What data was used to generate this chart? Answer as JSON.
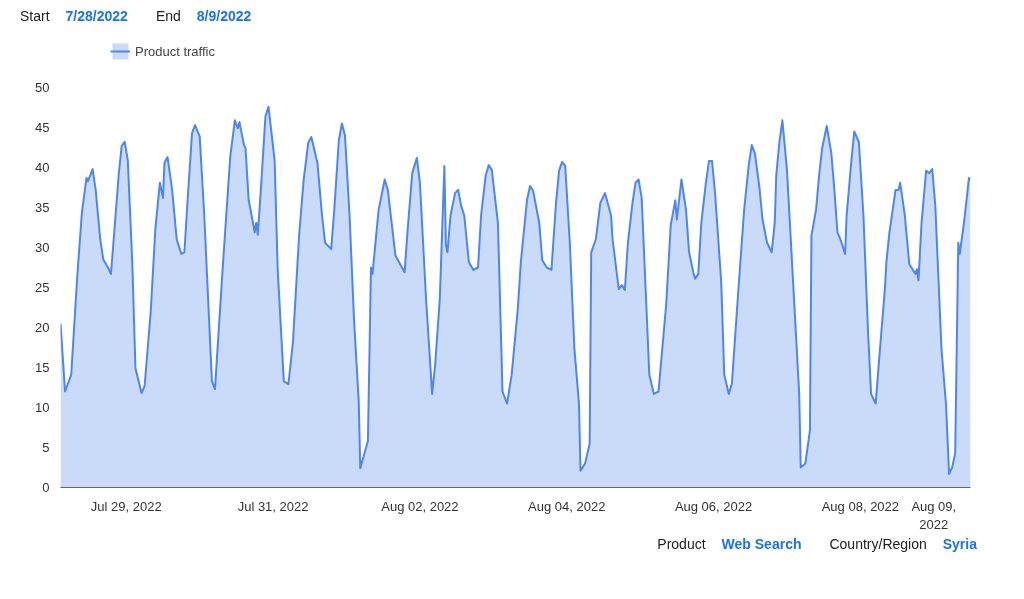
{
  "chart_data": {
    "type": "area",
    "annotations": [
      "Start",
      "7/28/2022",
      "End",
      "8/9/2022",
      "Product",
      "Web Search",
      "Country/Region",
      "Syria"
    ],
    "x": [
      "2022-07-28T02:30",
      "2022-07-28T04:00",
      "2022-07-28T06:00",
      "2022-07-28T08:00",
      "2022-07-28T09:30",
      "2022-07-28T11:00",
      "2022-07-28T11:30",
      "2022-07-28T13:00",
      "2022-07-28T14:00",
      "2022-07-28T15:30",
      "2022-07-28T16:30",
      "2022-07-28T18:00",
      "2022-07-28T19:00",
      "2022-07-28T20:30",
      "2022-07-28T21:30",
      "2022-07-28T22:30",
      "2022-07-28T23:30",
      "2022-07-29T00:30",
      "2022-07-29T02:00",
      "2022-07-29T03:00",
      "2022-07-29T05:00",
      "2022-07-29T06:00",
      "2022-07-29T08:00",
      "2022-07-29T09:30",
      "2022-07-29T11:00",
      "2022-07-29T12:00",
      "2022-07-29T12:30",
      "2022-07-29T13:30",
      "2022-07-29T15:00",
      "2022-07-29T16:30",
      "2022-07-29T18:00",
      "2022-07-29T19:00",
      "2022-07-29T20:00",
      "2022-07-29T21:30",
      "2022-07-29T22:30",
      "2022-07-30T00:00",
      "2022-07-30T01:30",
      "2022-07-30T03:00",
      "2022-07-30T04:00",
      "2022-07-30T05:00",
      "2022-07-30T07:30",
      "2022-07-30T10:00",
      "2022-07-30T11:30",
      "2022-07-30T12:30",
      "2022-07-30T13:00",
      "2022-07-30T14:30",
      "2022-07-30T15:00",
      "2022-07-30T16:00",
      "2022-07-30T18:00",
      "2022-07-30T18:30",
      "2022-07-30T19:00",
      "2022-07-30T20:00",
      "2022-07-30T21:30",
      "2022-07-30T22:30",
      "2022-07-31T00:30",
      "2022-07-31T01:30",
      "2022-07-31T03:30",
      "2022-07-31T05:00",
      "2022-07-31T06:30",
      "2022-07-31T08:30",
      "2022-07-31T10:00",
      "2022-07-31T11:30",
      "2022-07-31T12:30",
      "2022-07-31T14:30",
      "2022-07-31T16:00",
      "2022-07-31T17:00",
      "2022-07-31T19:00",
      "2022-07-31T20:00",
      "2022-07-31T21:30",
      "2022-07-31T22:30",
      "2022-07-31T23:30",
      "2022-08-01T01:00",
      "2022-08-01T02:30",
      "2022-08-01T04:00",
      "2022-08-01T04:30",
      "2022-08-01T07:00",
      "2022-08-01T08:00",
      "2022-08-01T08:30",
      "2022-08-01T10:30",
      "2022-08-01T12:30",
      "2022-08-01T13:30",
      "2022-08-01T15:00",
      "2022-08-01T16:00",
      "2022-08-01T19:00",
      "2022-08-01T20:00",
      "2022-08-01T21:30",
      "2022-08-01T23:00",
      "2022-08-02T00:00",
      "2022-08-02T02:00",
      "2022-08-02T04:00",
      "2022-08-02T05:00",
      "2022-08-02T06:30",
      "2022-08-02T08:00",
      "2022-08-02T08:30",
      "2022-08-02T09:00",
      "2022-08-02T10:00",
      "2022-08-02T11:30",
      "2022-08-02T12:30",
      "2022-08-02T13:30",
      "2022-08-02T14:30",
      "2022-08-02T16:00",
      "2022-08-02T17:30",
      "2022-08-02T19:00",
      "2022-08-02T20:00",
      "2022-08-02T21:30",
      "2022-08-02T22:30",
      "2022-08-02T23:30",
      "2022-08-03T01:30",
      "2022-08-03T03:00",
      "2022-08-03T04:30",
      "2022-08-03T06:00",
      "2022-08-03T08:00",
      "2022-08-03T09:00",
      "2022-08-03T11:00",
      "2022-08-03T12:00",
      "2022-08-03T13:00",
      "2022-08-03T15:00",
      "2022-08-03T16:00",
      "2022-08-03T17:30",
      "2022-08-03T19:00",
      "2022-08-03T20:30",
      "2022-08-03T21:30",
      "2022-08-03T22:30",
      "2022-08-03T23:30",
      "2022-08-04T01:00",
      "2022-08-04T02:30",
      "2022-08-04T04:00",
      "2022-08-04T04:30",
      "2022-08-04T06:00",
      "2022-08-04T07:30",
      "2022-08-04T08:00",
      "2022-08-04T09:30",
      "2022-08-04T11:00",
      "2022-08-04T11:30",
      "2022-08-04T12:30",
      "2022-08-04T14:30",
      "2022-08-04T15:00",
      "2022-08-04T17:00",
      "2022-08-04T18:00",
      "2022-08-04T19:00",
      "2022-08-04T20:00",
      "2022-08-04T21:30",
      "2022-08-04T22:30",
      "2022-08-04T23:30",
      "2022-08-05T00:30",
      "2022-08-05T03:00",
      "2022-08-05T04:30",
      "2022-08-05T06:00",
      "2022-08-05T08:30",
      "2022-08-05T10:00",
      "2022-08-05T11:30",
      "2022-08-05T12:00",
      "2022-08-05T13:30",
      "2022-08-05T15:00",
      "2022-08-05T16:00",
      "2022-08-05T17:30",
      "2022-08-05T18:00",
      "2022-08-05T19:00",
      "2022-08-05T20:00",
      "2022-08-05T21:30",
      "2022-08-05T22:30",
      "2022-08-05T23:30",
      "2022-08-06T00:30",
      "2022-08-06T02:30",
      "2022-08-06T03:30",
      "2022-08-06T05:00",
      "2022-08-06T06:00",
      "2022-08-06T08:00",
      "2022-08-06T10:00",
      "2022-08-06T11:30",
      "2022-08-06T12:30",
      "2022-08-06T13:30",
      "2022-08-06T15:00",
      "2022-08-06T16:00",
      "2022-08-06T17:30",
      "2022-08-06T19:00",
      "2022-08-06T20:00",
      "2022-08-06T20:30",
      "2022-08-06T21:30",
      "2022-08-06T22:30",
      "2022-08-07T00:00",
      "2022-08-07T02:00",
      "2022-08-07T04:00",
      "2022-08-07T04:30",
      "2022-08-07T06:00",
      "2022-08-07T07:30",
      "2022-08-07T08:00",
      "2022-08-07T09:30",
      "2022-08-07T10:30",
      "2022-08-07T11:30",
      "2022-08-07T13:00",
      "2022-08-07T14:30",
      "2022-08-07T15:30",
      "2022-08-07T16:30",
      "2022-08-07T17:30",
      "2022-08-07T19:00",
      "2022-08-07T19:30",
      "2022-08-07T21:00",
      "2022-08-07T22:00",
      "2022-08-07T23:30",
      "2022-08-08T01:00",
      "2022-08-08T02:30",
      "2022-08-08T03:30",
      "2022-08-08T05:00",
      "2022-08-08T06:00",
      "2022-08-08T08:00",
      "2022-08-08T08:30",
      "2022-08-08T09:30",
      "2022-08-08T11:30",
      "2022-08-08T12:30",
      "2022-08-08T13:00",
      "2022-08-08T14:30",
      "2022-08-08T16:00",
      "2022-08-08T18:00",
      "2022-08-08T18:30",
      "2022-08-08T19:00",
      "2022-08-08T20:00",
      "2022-08-08T21:30",
      "2022-08-08T22:30",
      "2022-08-08T23:30",
      "2022-08-09T00:30",
      "2022-08-09T02:30",
      "2022-08-09T04:00",
      "2022-08-09T05:00",
      "2022-08-09T06:00",
      "2022-08-09T07:00",
      "2022-08-09T08:00",
      "2022-08-09T08:30",
      "2022-08-09T10:00",
      "2022-08-09T11:30",
      "2022-08-09T12:00"
    ],
    "series": [
      {
        "name": "Product traffic",
        "color": "#4f86ec",
        "values": [
          20.5,
          12.0,
          14.1,
          26.5,
          34.4,
          38.7,
          38.3,
          39.8,
          37.2,
          31.0,
          28.5,
          27.5,
          26.7,
          34.0,
          39.0,
          42.7,
          43.2,
          40.9,
          27.8,
          14.9,
          11.8,
          12.7,
          22.0,
          32.3,
          38.1,
          36.2,
          40.6,
          41.3,
          37.2,
          31.0,
          29.2,
          29.4,
          35.6,
          44.3,
          45.3,
          43.9,
          34.0,
          21.6,
          13.3,
          12.3,
          27.3,
          41.4,
          45.9,
          44.9,
          45.7,
          42.8,
          42.4,
          36.0,
          31.9,
          33.1,
          31.6,
          37.2,
          46.4,
          47.6,
          40.9,
          27.3,
          13.3,
          12.9,
          18.2,
          31.5,
          38.5,
          43.1,
          43.8,
          40.6,
          34.0,
          30.6,
          29.8,
          34.7,
          43.4,
          45.5,
          44.0,
          34.0,
          20.7,
          10.8,
          2.4,
          5.8,
          27.5,
          26.7,
          34.7,
          38.5,
          37.2,
          32.3,
          29.0,
          26.9,
          32.3,
          39.3,
          41.2,
          38.1,
          23.6,
          11.7,
          15.4,
          23.6,
          40.2,
          30.3,
          29.4,
          34.0,
          36.8,
          37.2,
          35.2,
          34.0,
          28.2,
          27.2,
          27.5,
          34.0,
          39.0,
          40.3,
          39.7,
          33.1,
          12.0,
          10.5,
          14.1,
          22.3,
          28.2,
          35.9,
          37.7,
          37.1,
          33.1,
          28.4,
          27.5,
          27.2,
          35.6,
          39.6,
          40.7,
          40.2,
          30.6,
          17.4,
          10.5,
          2.1,
          3.0,
          5.5,
          29.4,
          31.0,
          35.6,
          36.0,
          36.8,
          34.0,
          31.0,
          24.8,
          25.3,
          24.7,
          30.6,
          35.6,
          38.1,
          38.5,
          36.2,
          14.1,
          11.7,
          12.0,
          22.8,
          32.8,
          35.9,
          33.5,
          38.5,
          34.7,
          29.4,
          26.7,
          26.1,
          26.7,
          33.1,
          38.1,
          40.8,
          40.8,
          36.8,
          25.7,
          14.1,
          11.7,
          13.0,
          24.1,
          34.7,
          40.3,
          42.8,
          41.8,
          37.5,
          33.5,
          30.6,
          29.4,
          33.1,
          39.0,
          43.1,
          45.9,
          39.7,
          25.7,
          11.7,
          2.5,
          3.0,
          7.1,
          31.5,
          34.7,
          39.0,
          42.4,
          45.2,
          41.8,
          37.2,
          31.9,
          31.0,
          29.2,
          34.0,
          40.6,
          44.5,
          43.2,
          34.0,
          19.5,
          11.7,
          10.5,
          15.4,
          24.8,
          28.2,
          31.9,
          37.2,
          37.2,
          38.1,
          34.1,
          27.9,
          26.7,
          27.3,
          25.9,
          33.1,
          39.6,
          39.3,
          39.8,
          35.2,
          17.4,
          10.4,
          1.7,
          2.5,
          4.3,
          30.6,
          29.2,
          33.5,
          38.7,
          38.5
        ]
      }
    ],
    "xlim": [
      "2022-07-28T02:30",
      "2022-08-09T12:00"
    ],
    "xticks": [
      {
        "value": "2022-07-29",
        "label": "Jul 29, 2022"
      },
      {
        "value": "2022-07-31",
        "label": "Jul 31, 2022"
      },
      {
        "value": "2022-08-02",
        "label": "Aug 02, 2022"
      },
      {
        "value": "2022-08-04",
        "label": "Aug 04, 2022"
      },
      {
        "value": "2022-08-06",
        "label": "Aug 06, 2022"
      },
      {
        "value": "2022-08-08",
        "label": "Aug 08, 2022"
      },
      {
        "value": "2022-08-09",
        "label": "Aug 09, 2022"
      }
    ],
    "ylim": [
      0,
      50
    ],
    "yticks": [
      0,
      5,
      10,
      15,
      20,
      25,
      30,
      35,
      40,
      45,
      50
    ],
    "legend": "top left",
    "grid": false,
    "marker": "none",
    "line_style": "solid"
  }
}
